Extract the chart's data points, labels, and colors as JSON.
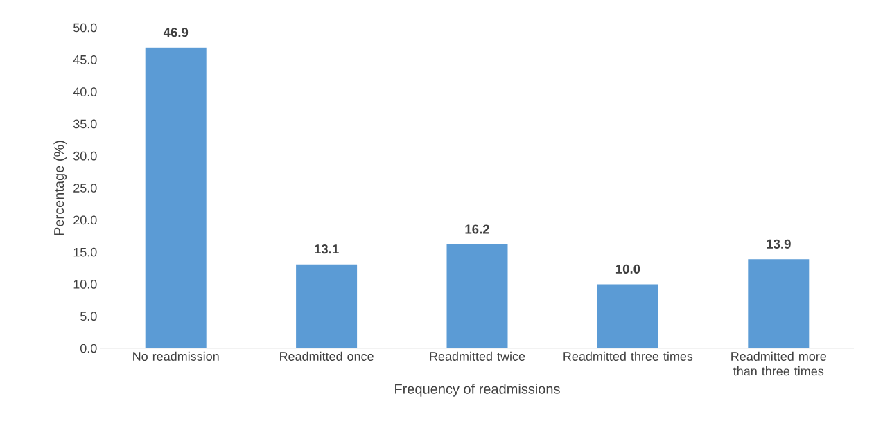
{
  "chart_data": {
    "type": "bar",
    "xlabel": "Frequency of readmissions",
    "ylabel": "Percentage (%)",
    "categories": [
      "No readmission",
      "Readmitted once",
      "Readmitted twice",
      "Readmitted three times",
      "Readmitted more than three times"
    ],
    "values": [
      46.9,
      13.1,
      16.2,
      10.0,
      13.9
    ],
    "value_labels": [
      "46.9",
      "13.1",
      "16.2",
      "10.0",
      "13.9"
    ],
    "color": "#5b9bd5",
    "ylim": [
      0,
      50
    ],
    "yticks": [
      {
        "value": 0,
        "label": "0.0"
      },
      {
        "value": 5,
        "label": "5.0"
      },
      {
        "value": 10,
        "label": "10.0"
      },
      {
        "value": 15,
        "label": "15.0"
      },
      {
        "value": 20,
        "label": "20.0"
      },
      {
        "value": 25,
        "label": "25.0"
      },
      {
        "value": 30,
        "label": "30.0"
      },
      {
        "value": 35,
        "label": "35.0"
      },
      {
        "value": 40,
        "label": "40.0"
      },
      {
        "value": 45,
        "label": "45.0"
      },
      {
        "value": 50,
        "label": "50.0"
      }
    ],
    "grid": false
  }
}
